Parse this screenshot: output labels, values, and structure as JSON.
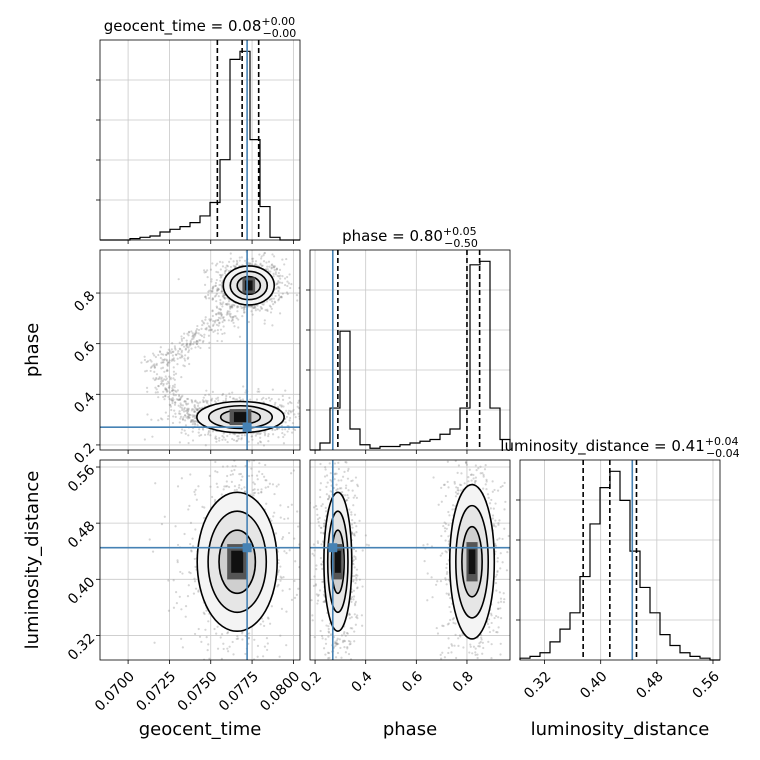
{
  "chart_data": {
    "type": "corner",
    "truth_color": "#4682b4",
    "grid": true,
    "parameters": [
      {
        "name": "geocent_time",
        "title_text": "geocent_time = 0.08",
        "title_sup": "+0.00",
        "title_sub": "−0.00",
        "range": [
          0.0683,
          0.0804
        ],
        "ticks": [
          0.07,
          0.0725,
          0.075,
          0.0775,
          0.08
        ],
        "tick_labels": [
          "0.0700",
          "0.0725",
          "0.0750",
          "0.0775",
          "0.0800"
        ],
        "quantiles": [
          0.0754,
          0.0769,
          0.0779
        ],
        "truth": 0.0772,
        "hist_edges_start": 0.0683,
        "hist_bin_width": 0.000605,
        "hist_counts": [
          0,
          0,
          0,
          1,
          2,
          3,
          6,
          8,
          10,
          13,
          18,
          28,
          60,
          135,
          141,
          75,
          25,
          2,
          0,
          0
        ]
      },
      {
        "name": "phase",
        "title_text": "phase = 0.80",
        "title_sup": "+0.05",
        "title_sub": "−0.50",
        "range": [
          0.18,
          0.97
        ],
        "ticks": [
          0.2,
          0.4,
          0.6,
          0.8
        ],
        "tick_labels": [
          "0.2",
          "0.4",
          "0.6",
          "0.8"
        ],
        "quantiles": [
          0.29,
          0.8,
          0.85
        ],
        "truth": 0.27,
        "hist_edges_start": 0.18,
        "hist_bin_width": 0.0395,
        "hist_counts": [
          0,
          4,
          24,
          68,
          12,
          3,
          1,
          2,
          2,
          3,
          4,
          5,
          6,
          9,
          12,
          24,
          106,
          108,
          24,
          6
        ]
      },
      {
        "name": "luminosity_distance",
        "title_text": "luminosity_distance = 0.41",
        "title_sup": "+0.04",
        "title_sub": "−0.04",
        "range": [
          0.285,
          0.57
        ],
        "ticks": [
          0.32,
          0.4,
          0.48,
          0.56
        ],
        "tick_labels": [
          "0.32",
          "0.40",
          "0.48",
          "0.56"
        ],
        "quantiles": [
          0.375,
          0.413,
          0.451
        ],
        "truth": 0.445,
        "hist_edges_start": 0.285,
        "hist_bin_width": 0.01425,
        "hist_counts": [
          1,
          2,
          4,
          10,
          17,
          26,
          46,
          75,
          95,
          104,
          88,
          60,
          40,
          26,
          14,
          8,
          4,
          2,
          1,
          0
        ]
      }
    ],
    "pair_contours": [
      {
        "x": "geocent_time",
        "y": "phase",
        "modes": [
          {
            "cx": 0.0773,
            "cy": 0.83,
            "sx": 0.0007,
            "sy": 0.035
          },
          {
            "cx": 0.0768,
            "cy": 0.31,
            "sx": 0.0012,
            "sy": 0.028
          }
        ]
      },
      {
        "x": "geocent_time",
        "y": "luminosity_distance",
        "modes": [
          {
            "cx": 0.0766,
            "cy": 0.425,
            "sx": 0.0011,
            "sy": 0.045
          }
        ]
      },
      {
        "x": "phase",
        "y": "luminosity_distance",
        "modes": [
          {
            "cx": 0.29,
            "cy": 0.425,
            "sx": 0.025,
            "sy": 0.045
          },
          {
            "cx": 0.82,
            "cy": 0.425,
            "sx": 0.04,
            "sy": 0.05
          }
        ]
      }
    ],
    "xlabels": [
      "geocent_time",
      "phase",
      "luminosity_distance"
    ],
    "ylabels": [
      "phase",
      "luminosity_distance"
    ]
  }
}
